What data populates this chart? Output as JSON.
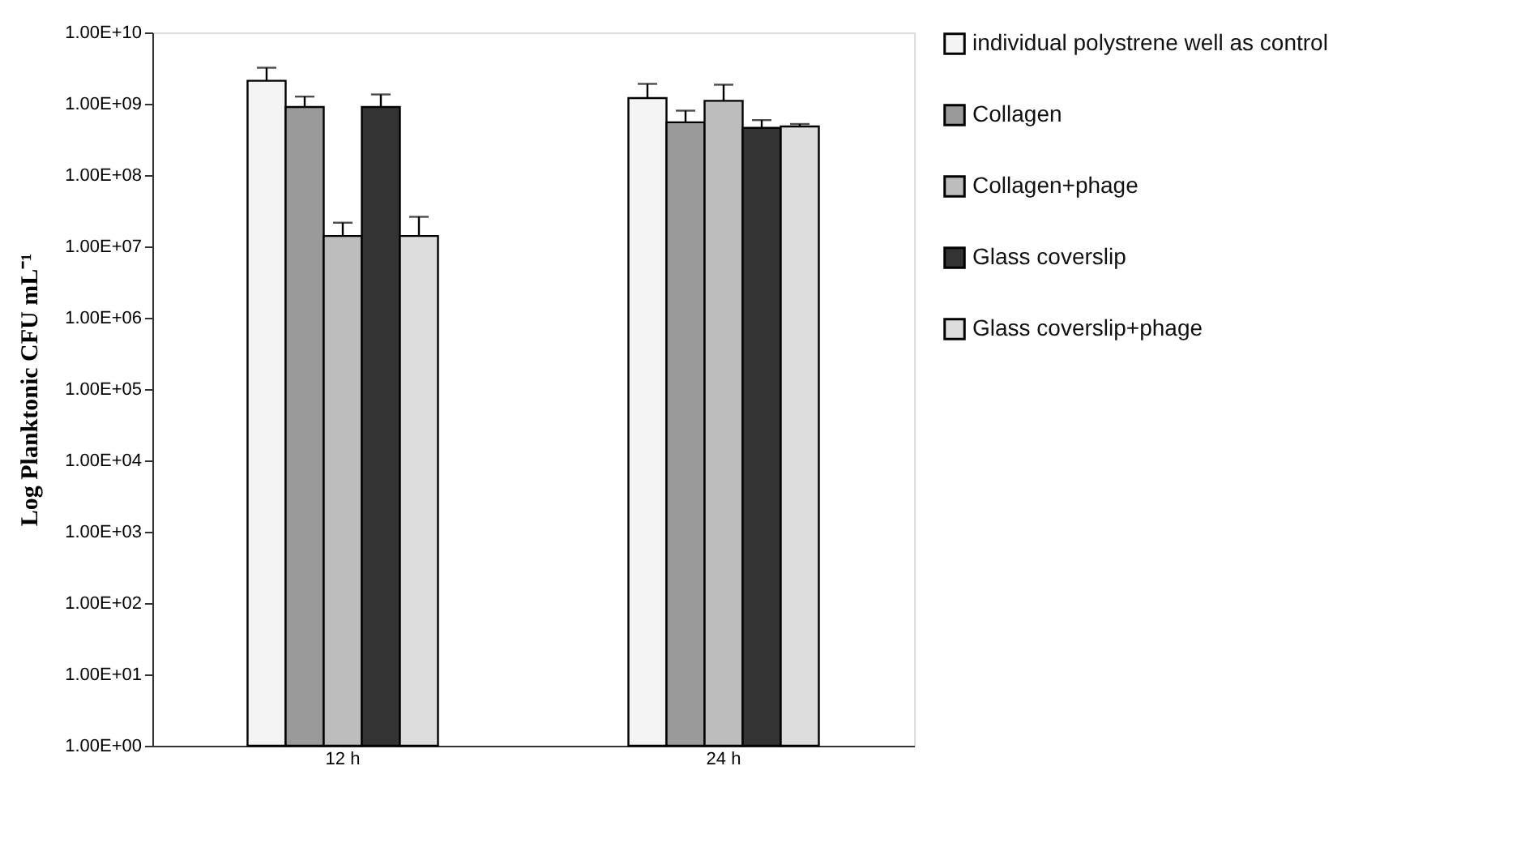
{
  "chart_data": {
    "type": "bar",
    "ylabel": "Log Planktonic CFU mL⁻¹",
    "categories": [
      "12 h",
      "24 h"
    ],
    "log": true,
    "grid": false,
    "legend": "right",
    "ylim": [
      1,
      10000000000
    ],
    "yticks": [
      {
        "value": 1,
        "label": "1.00E+00"
      },
      {
        "value": 10,
        "label": "1.00E+01"
      },
      {
        "value": 100,
        "label": "1.00E+02"
      },
      {
        "value": 1000,
        "label": "1.00E+03"
      },
      {
        "value": 10000,
        "label": "1.00E+04"
      },
      {
        "value": 100000,
        "label": "1.00E+05"
      },
      {
        "value": 1000000,
        "label": "1.00E+06"
      },
      {
        "value": 10000000,
        "label": "1.00E+07"
      },
      {
        "value": 100000000,
        "label": "1.00E+08"
      },
      {
        "value": 1000000000,
        "label": "1.00E+09"
      },
      {
        "value": 10000000000,
        "label": "1.00E+10"
      }
    ],
    "series": [
      {
        "name": "individual polystrene well as control",
        "color": "#f4f4f4",
        "values": [
          2100000000,
          1200000000
        ],
        "errors": [
          1100000000,
          700000000
        ]
      },
      {
        "name": "Collagen",
        "color": "#9a9a9a",
        "values": [
          900000000,
          550000000
        ],
        "errors": [
          360000000,
          250000000
        ]
      },
      {
        "name": "Collagen+phage",
        "color": "#bdbdbd",
        "values": [
          14000000,
          1100000000
        ],
        "errors": [
          7500000,
          750000000
        ]
      },
      {
        "name": "Glass coverslip",
        "color": "#333333",
        "values": [
          900000000,
          460000000
        ],
        "errors": [
          450000000,
          130000000
        ]
      },
      {
        "name": "Glass coverslip+phage",
        "color": "#dddddd",
        "values": [
          14000000,
          480000000
        ],
        "errors": [
          12000000,
          40000000
        ]
      }
    ]
  }
}
